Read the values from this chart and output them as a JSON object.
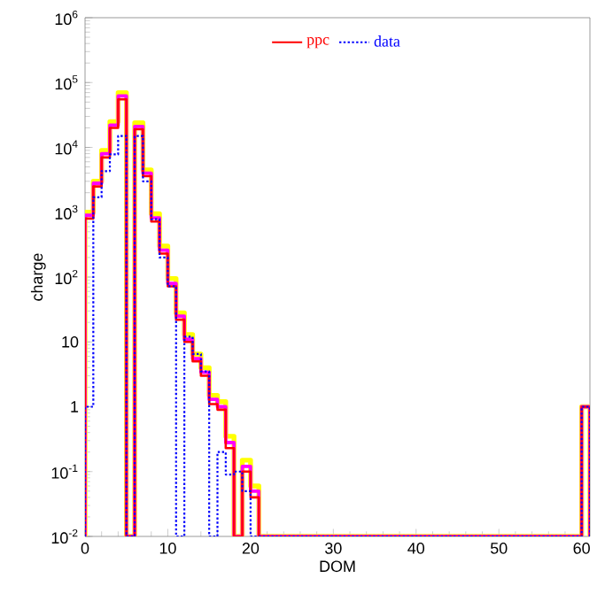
{
  "chart_data": {
    "type": "histogram",
    "xlabel": "DOM",
    "ylabel": "charge",
    "log": "y",
    "legend": "top",
    "bins": [
      0,
      1,
      2,
      3,
      4,
      5,
      6,
      7,
      8,
      9,
      10,
      11,
      12,
      13,
      14,
      15,
      16,
      17,
      18,
      19,
      20,
      21,
      22,
      23,
      24,
      25,
      26,
      27,
      28,
      29,
      30,
      31,
      32,
      33,
      34,
      35,
      36,
      37,
      38,
      39,
      40,
      41,
      42,
      43,
      44,
      45,
      46,
      47,
      48,
      49,
      50,
      51,
      52,
      53,
      54,
      55,
      56,
      57,
      58,
      59,
      60,
      61
    ],
    "xlim": [
      0,
      61
    ],
    "xticks": [
      0,
      10,
      20,
      30,
      40,
      50,
      60
    ],
    "ylim": [
      0.01,
      1000000
    ],
    "yticks": [
      {
        "value": 0.01,
        "label": "10$^{-2}$"
      },
      {
        "value": 0.1,
        "label": "10$^{-1}$"
      },
      1,
      10,
      {
        "value": 100,
        "label": "10$^{2}$"
      },
      {
        "value": 1000,
        "label": "10$^{3}$"
      },
      {
        "value": 10000,
        "label": "10$^{4}$"
      },
      {
        "value": 100000,
        "label": "10$^{5}$"
      },
      {
        "value": 1000000,
        "label": "10$^{6}$"
      }
    ],
    "series": [
      {
        "color": "#ffff00",
        "line_style": "solid",
        "values": [
          1000,
          3000,
          9000,
          25000,
          70000,
          null,
          24000,
          4500,
          950,
          300,
          95,
          28,
          13,
          6.5,
          4,
          1.5,
          1.2,
          0.35,
          null,
          0.15,
          0.06,
          null,
          null,
          null,
          null,
          null,
          null,
          null,
          null,
          null,
          null,
          null,
          null,
          null,
          null,
          null,
          null,
          null,
          null,
          null,
          null,
          null,
          null,
          null,
          null,
          null,
          null,
          null,
          null,
          null,
          null,
          null,
          null,
          null,
          null,
          null,
          null,
          null,
          null,
          null,
          1
        ]
      },
      {
        "color": "#ff00ff",
        "line_style": "solid",
        "values": [
          900,
          2800,
          8000,
          22000,
          62000,
          null,
          21000,
          4000,
          820,
          260,
          80,
          25,
          11,
          5.5,
          3.4,
          1.3,
          1.0,
          0.28,
          null,
          0.12,
          0.05,
          null,
          null,
          null,
          null,
          null,
          null,
          null,
          null,
          null,
          null,
          null,
          null,
          null,
          null,
          null,
          null,
          null,
          null,
          null,
          null,
          null,
          null,
          null,
          null,
          null,
          null,
          null,
          null,
          null,
          null,
          null,
          null,
          null,
          null,
          null,
          null,
          null,
          null,
          null,
          1
        ]
      },
      {
        "name": "ppc",
        "color": "#ff0000",
        "line_style": "solid",
        "values": [
          800,
          2500,
          7000,
          20000,
          55000,
          null,
          19000,
          3600,
          720,
          230,
          72,
          22,
          10,
          5,
          3,
          1.1,
          0.9,
          0.23,
          null,
          0.1,
          0.04,
          null,
          null,
          null,
          null,
          null,
          null,
          null,
          null,
          null,
          null,
          null,
          null,
          null,
          null,
          null,
          null,
          null,
          null,
          null,
          null,
          null,
          null,
          null,
          null,
          null,
          null,
          null,
          null,
          null,
          null,
          null,
          null,
          null,
          null,
          null,
          null,
          null,
          null,
          null,
          1
        ]
      },
      {
        "name": "data",
        "color": "#0000ff",
        "line_style": "dotted",
        "values": [
          1,
          1700,
          4300,
          7800,
          15000,
          null,
          15000,
          3000,
          780,
          200,
          72,
          null,
          12,
          6.5,
          3.5,
          null,
          0.2,
          0.09,
          0.1,
          0.05,
          null,
          null,
          null,
          null,
          null,
          null,
          null,
          null,
          null,
          null,
          null,
          null,
          null,
          null,
          null,
          null,
          null,
          null,
          null,
          null,
          null,
          null,
          null,
          null,
          null,
          null,
          null,
          null,
          null,
          null,
          null,
          null,
          null,
          null,
          null,
          null,
          null,
          null,
          null,
          null,
          1
        ]
      }
    ]
  }
}
